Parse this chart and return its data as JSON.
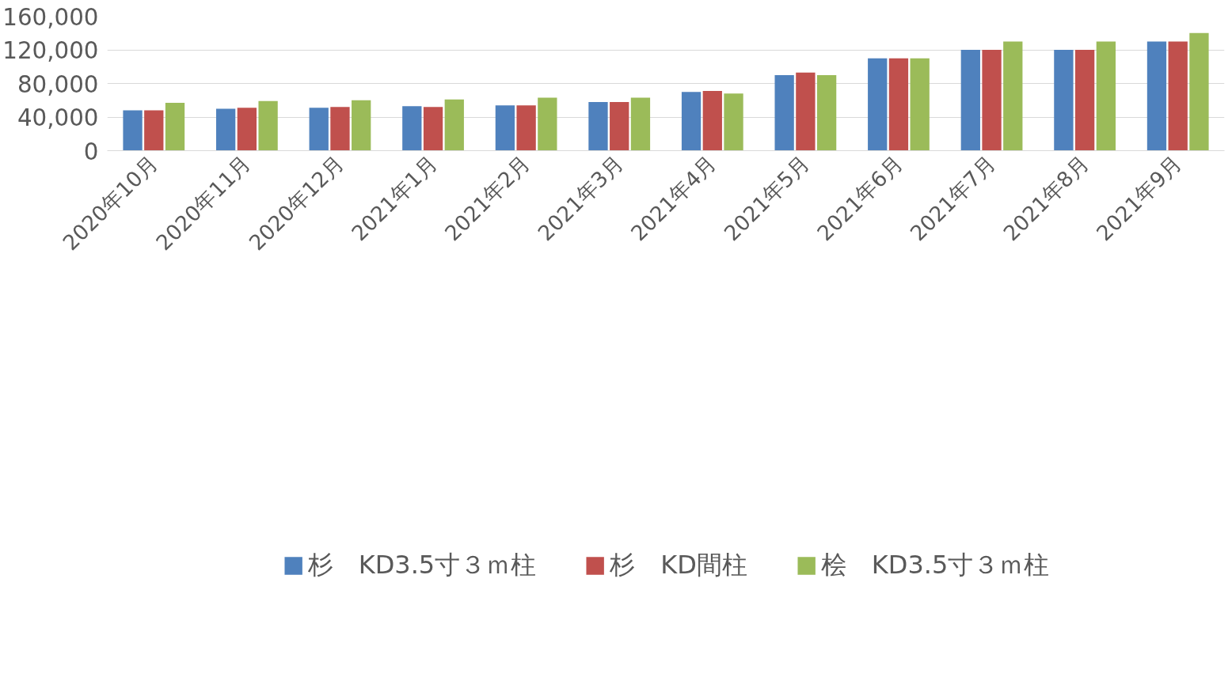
{
  "chart_data": {
    "type": "bar",
    "categories": [
      "2020年10月",
      "2020年11月",
      "2020年12月",
      "2021年1月",
      "2021年2月",
      "2021年3月",
      "2021年4月",
      "2021年5月",
      "2021年6月",
      "2021年7月",
      "2021年8月",
      "2021年9月"
    ],
    "series": [
      {
        "name": "杉　KD3.5寸３ｍ柱",
        "color": "#4f81bd",
        "values": [
          48000,
          50000,
          51000,
          53000,
          54000,
          58000,
          70000,
          90000,
          110000,
          120000,
          120000,
          130000
        ]
      },
      {
        "name": "杉　KD間柱",
        "color": "#c0504d",
        "values": [
          48000,
          51000,
          52000,
          52000,
          54000,
          58000,
          71000,
          93000,
          110000,
          120000,
          120000,
          130000
        ]
      },
      {
        "name": "桧　KD3.5寸３ｍ柱",
        "color": "#9bbb59",
        "values": [
          57000,
          59000,
          60000,
          61000,
          63000,
          63000,
          68000,
          90000,
          110000,
          130000,
          130000,
          140000
        ]
      }
    ],
    "ylim": [
      0,
      160000
    ],
    "yticks": [
      {
        "value": 0,
        "label": "0"
      },
      {
        "value": 40000,
        "label": "40,000"
      },
      {
        "value": 80000,
        "label": "80,000"
      },
      {
        "value": 120000,
        "label": "120,000"
      },
      {
        "value": 160000,
        "label": "160,000"
      }
    ],
    "grid": "y",
    "legend": "bottom"
  }
}
